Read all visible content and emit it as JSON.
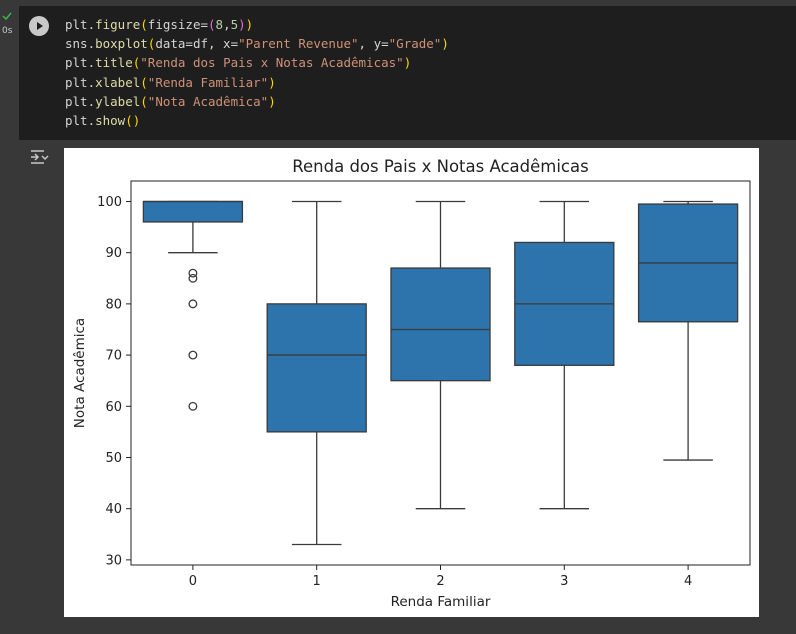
{
  "cell": {
    "status_icon": "check-icon",
    "exec_time": "0s",
    "run_icon": "play-icon",
    "output_icon": "output-toggle-icon",
    "code_lines": [
      "plt.figure(figsize=(8,5))",
      "sns.boxplot(data=df, x=\"Parent Revenue\", y=\"Grade\")",
      "plt.title(\"Renda dos Pais x Notas Acadêmicas\")",
      "plt.xlabel(\"Renda Familiar\")",
      "plt.ylabel(\"Nota Acadêmica\")",
      "plt.show()"
    ]
  },
  "colors": {
    "box_fill": "#2e74ac",
    "line": "#3a3a3a",
    "success": "#3fb950",
    "page_bg": "#383838",
    "cell_bg": "#1e1e1e"
  },
  "chart_data": {
    "type": "boxplot",
    "title": "Renda dos Pais x Notas Acadêmicas",
    "xlabel": "Renda Familiar",
    "ylabel": "Nota Acadêmica",
    "categories": [
      "0",
      "1",
      "2",
      "3",
      "4"
    ],
    "ylim": [
      29,
      104
    ],
    "yticks": [
      30,
      40,
      50,
      60,
      70,
      80,
      90,
      100
    ],
    "grid": false,
    "boxes": [
      {
        "category": "0",
        "whisker_low": 90,
        "q1": 96,
        "median": 100,
        "q3": 100,
        "whisker_high": 100,
        "outliers": [
          86,
          85,
          80,
          70,
          60
        ]
      },
      {
        "category": "1",
        "whisker_low": 33,
        "q1": 55,
        "median": 70,
        "q3": 80,
        "whisker_high": 100,
        "outliers": []
      },
      {
        "category": "2",
        "whisker_low": 40,
        "q1": 65,
        "median": 75,
        "q3": 87,
        "whisker_high": 100,
        "outliers": []
      },
      {
        "category": "3",
        "whisker_low": 40,
        "q1": 68,
        "median": 80,
        "q3": 92,
        "whisker_high": 100,
        "outliers": []
      },
      {
        "category": "4",
        "whisker_low": 49.5,
        "q1": 76.5,
        "median": 88,
        "q3": 99.5,
        "whisker_high": 100,
        "outliers": []
      }
    ]
  }
}
